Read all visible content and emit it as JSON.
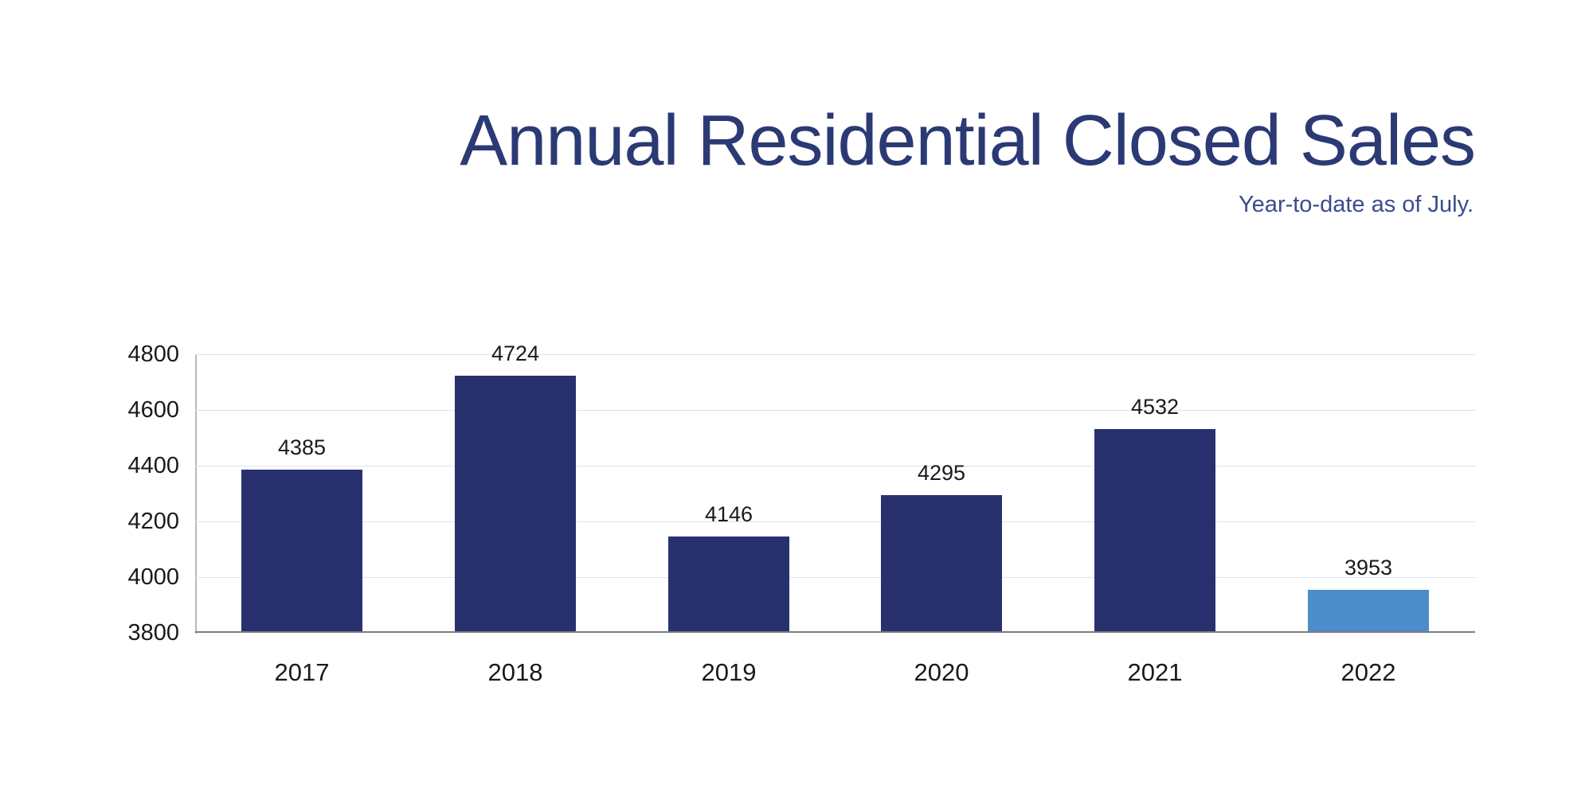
{
  "header": {
    "title": "Annual Residential Closed Sales",
    "subtitle": "Year-to-date as of July.",
    "title_color": "#2b3a74",
    "subtitle_color": "#3c4b8e"
  },
  "chart_data": {
    "type": "bar",
    "title": "Annual Residential Closed Sales",
    "subtitle": "Year-to-date as of July.",
    "categories": [
      "2017",
      "2018",
      "2019",
      "2020",
      "2021",
      "2022"
    ],
    "values": [
      4385,
      4724,
      4146,
      4295,
      4532,
      3953
    ],
    "value_labels": [
      "4385",
      "4724",
      "4146",
      "4295",
      "4532",
      "3953"
    ],
    "bar_colors": [
      "#28316e",
      "#28316e",
      "#28316e",
      "#28316e",
      "#28316e",
      "#4c8ccb"
    ],
    "highlight_category": "2022",
    "highlight_color": "#4c8ccb",
    "series_color": "#28316e",
    "xlabel": "",
    "ylabel": "",
    "ylim": [
      3800,
      4800
    ],
    "yticks": [
      4800,
      4600,
      4400,
      4200,
      4000,
      3800
    ],
    "grid": "horizontal",
    "legend": "none",
    "style": {
      "gridline_color": "#dde1ee",
      "x_axis_color": "#7d7d7d",
      "y_axis_color": "#b3b8c2",
      "tick_label_color": "#1a1a1a",
      "background": "#ffffff"
    }
  }
}
